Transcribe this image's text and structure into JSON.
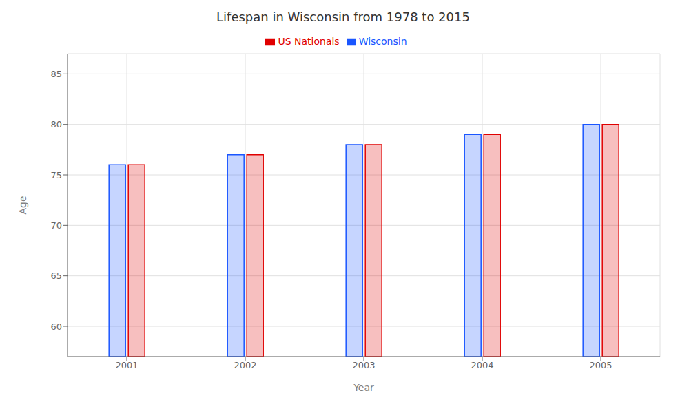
{
  "chart_data": {
    "type": "bar",
    "title": "Lifespan in Wisconsin from 1978 to 2015",
    "x_label": "Year",
    "y_label": "Age",
    "categories": [
      "2001",
      "2002",
      "2003",
      "2004",
      "2005"
    ],
    "series": [
      {
        "name": "Wisconsin",
        "color": "#1a56ff",
        "values": [
          76,
          77,
          78,
          79,
          80
        ]
      },
      {
        "name": "US Nationals",
        "color": "#e00000",
        "values": [
          76,
          77,
          78,
          79,
          80
        ]
      }
    ],
    "ylim": [
      57,
      87
    ],
    "yticks": [
      60,
      65,
      70,
      75,
      80,
      85
    ],
    "grid": true,
    "legend": "top"
  }
}
